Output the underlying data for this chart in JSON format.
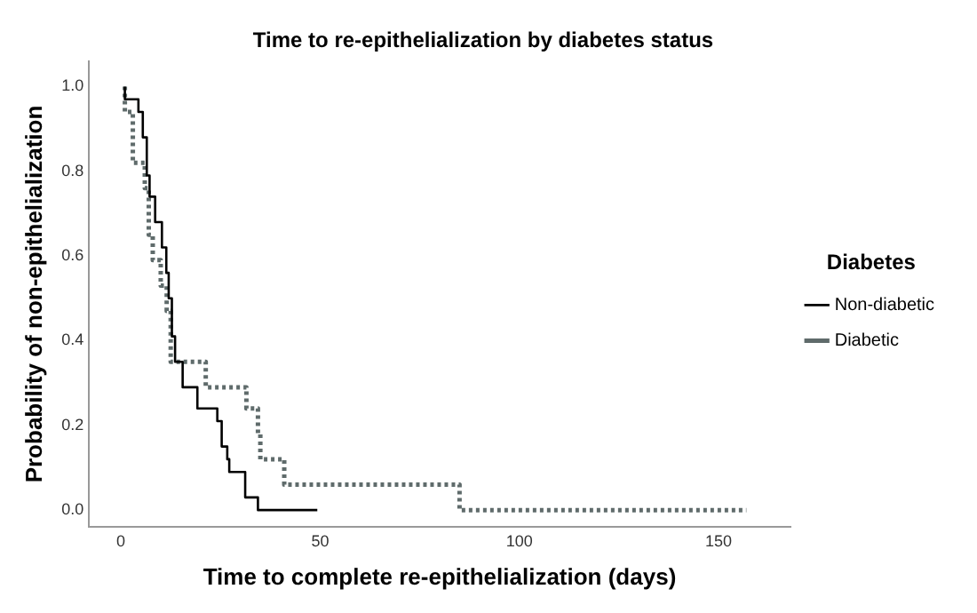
{
  "chart_data": {
    "type": "step",
    "title": "Time to re-epithelialization by diabetes status",
    "xlabel": "Time to complete re-epithelialization (days)",
    "ylabel": "Probability of non-epithelialization",
    "legend_title": "Diabetes",
    "legend": "right",
    "grid": false,
    "marker": "none",
    "xlim": [
      -8,
      168
    ],
    "xticks": [
      0,
      50,
      100,
      150
    ],
    "ylim": [
      -0.04,
      1.06
    ],
    "yticks": [
      {
        "value": 0,
        "label": "0.0"
      },
      0.2,
      0.4,
      0.6,
      0.8,
      {
        "value": 1,
        "label": "1.0"
      }
    ],
    "series": [
      {
        "name": "Non-diabetic",
        "color": "#000000",
        "line_style": "solid",
        "x": [
          1,
          4.4,
          5.5,
          6.5,
          7.2,
          8.6,
          10.3,
          11.4,
          12,
          12.8,
          13.6,
          15.5,
          19.2,
          24.2,
          25.3,
          26.7,
          27.2,
          31.2,
          34.4,
          49.3
        ],
        "values": [
          1.0,
          0.97,
          0.94,
          0.88,
          0.79,
          0.74,
          0.68,
          0.62,
          0.56,
          0.5,
          0.41,
          0.35,
          0.29,
          0.24,
          0.21,
          0.15,
          0.12,
          0.09,
          0.03,
          0.0
        ]
      },
      {
        "name": "Diabetic",
        "color": "#5f6b6b",
        "line_style": "dotted",
        "x": [
          1,
          3,
          6,
          7,
          8,
          10,
          11.5,
          12.5,
          21.3,
          31.5,
          34.4,
          35,
          41,
          85,
          157
        ],
        "values": [
          1.0,
          0.94,
          0.82,
          0.76,
          0.65,
          0.59,
          0.53,
          0.47,
          0.35,
          0.29,
          0.24,
          0.18,
          0.12,
          0.06,
          0.0
        ]
      }
    ]
  }
}
